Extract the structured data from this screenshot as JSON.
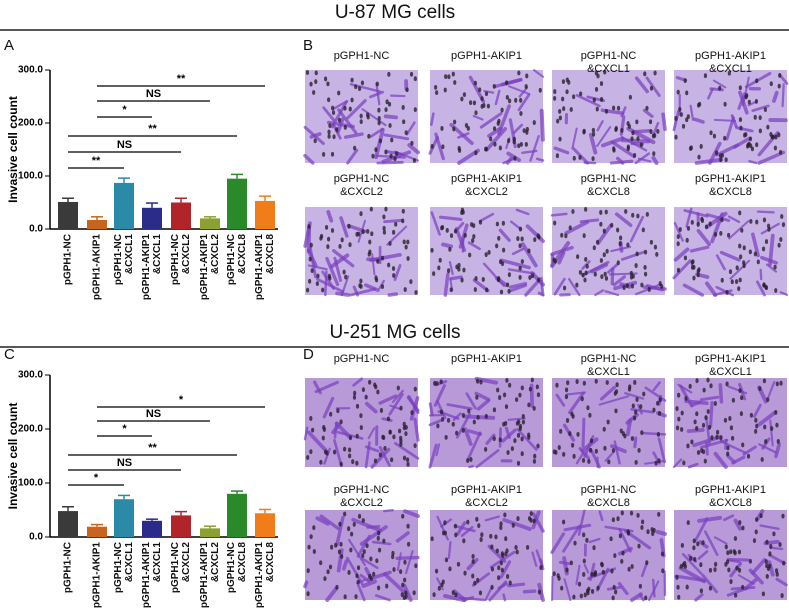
{
  "sections": [
    {
      "title": "U-87 MG cells",
      "chart_letter": "A",
      "images_letter": "B",
      "images": [
        "pGPH1-NC",
        "pGPH1-AKIP1",
        "pGPH1-NC\n&CXCL1",
        "pGPH1-AKIP1\n&CXCL1",
        "pGPH1-NC\n&CXCL2",
        "pGPH1-AKIP1\n&CXCL2",
        "pGPH1-NC\n&CXCL8",
        "pGPH1-AKIP1\n&CXCL8"
      ]
    },
    {
      "title": "U-251 MG cells",
      "chart_letter": "C",
      "images_letter": "D",
      "images": [
        "pGPH1-NC",
        "pGPH1-AKIP1",
        "pGPH1-NC\n&CXCL1",
        "pGPH1-AKIP1\n&CXCL1",
        "pGPH1-NC\n&CXCL2",
        "pGPH1-AKIP1\n&CXCL2",
        "pGPH1-NC\n&CXCL8",
        "pGPH1-AKIP1\n&CXCL8"
      ]
    }
  ],
  "chart_data": [
    {
      "type": "bar",
      "y_label": "Invasive cell count",
      "categories": [
        "pGPH1-NC",
        "pGPH1-AKIP1",
        "pGPH1-NC\n&CXCL1",
        "pGPH1-AKIP1\n&CXCL1",
        "pGPH1-NC\n&CXCL2",
        "pGPH1-AKIP1\n&CXCL2",
        "pGPH1-NC\n&CXCL8",
        "pGPH1-AKIP1\n&CXCL8"
      ],
      "values": [
        51,
        17,
        87,
        40,
        50,
        20,
        95,
        53
      ],
      "errors": [
        7,
        6,
        9,
        9,
        8,
        3,
        8,
        9
      ],
      "colors": [
        "#3a3a3a",
        "#c8641e",
        "#2a8aa8",
        "#2b2b8a",
        "#b0242a",
        "#8aa030",
        "#2a8a2a",
        "#f07d1a"
      ],
      "ylim": [
        0,
        300
      ],
      "yticks": [
        {
          "value": 0,
          "label": "0.0"
        },
        {
          "value": 100,
          "label": "100.0"
        },
        {
          "value": 200,
          "label": "200.0"
        },
        {
          "value": 300,
          "label": "300.0"
        }
      ],
      "annotations": [
        "**",
        "NS",
        "*",
        "**",
        "NS",
        "**"
      ]
    },
    {
      "type": "bar",
      "y_label": "Invasive cell count",
      "categories": [
        "pGPH1-NC",
        "pGPH1-AKIP1",
        "pGPH1-NC\n&CXCL1",
        "pGPH1-AKIP1\n&CXCL1",
        "pGPH1-NC\n&CXCL2",
        "pGPH1-AKIP1\n&CXCL2",
        "pGPH1-NC\n&CXCL8",
        "pGPH1-AKIP1\n&CXCL8"
      ],
      "values": [
        48,
        19,
        70,
        30,
        40,
        16,
        80,
        44
      ],
      "errors": [
        8,
        4,
        7,
        3,
        7,
        4,
        5,
        7
      ],
      "colors": [
        "#3a3a3a",
        "#c8641e",
        "#2a8aa8",
        "#2b2b8a",
        "#b0242a",
        "#8aa030",
        "#2a8a2a",
        "#f07d1a"
      ],
      "ylim": [
        0,
        300
      ],
      "yticks": [
        {
          "value": 0,
          "label": "0.0"
        },
        {
          "value": 100,
          "label": "100.0"
        },
        {
          "value": 200,
          "label": "200.0"
        },
        {
          "value": 300,
          "label": "300.0"
        }
      ],
      "annotations": [
        "*",
        "NS",
        "*",
        "**",
        "NS",
        "*"
      ]
    }
  ]
}
